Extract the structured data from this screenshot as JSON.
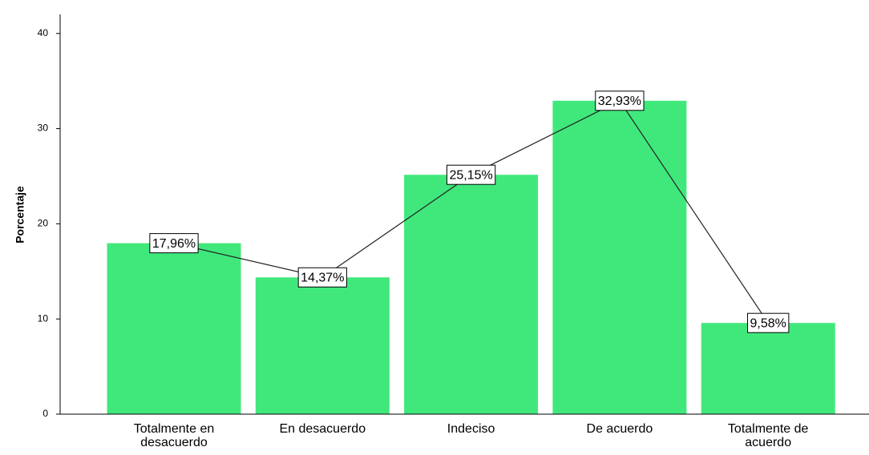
{
  "chart_data": {
    "type": "bar",
    "y_label": "Porcentaje",
    "categories": [
      "Totalmente en desacuerdo",
      "En desacuerdo",
      "Indeciso",
      "De acuerdo",
      "Totalmente de acuerdo"
    ],
    "values": [
      17.96,
      14.37,
      25.15,
      32.93,
      9.58
    ],
    "value_labels": [
      "17,96%",
      "14,37%",
      "25,15%",
      "32,93%",
      "9,58%"
    ],
    "color": "#40e87c",
    "ylim": [
      0,
      42
    ],
    "yticks": [
      0,
      10,
      20,
      30,
      40
    ]
  }
}
